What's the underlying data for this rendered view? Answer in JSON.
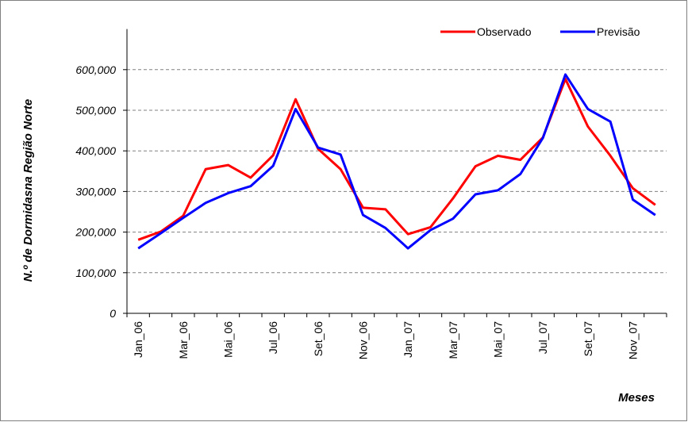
{
  "chart_data": {
    "type": "line",
    "y_label": "N.º de Dormidasna Região Norte",
    "x_label": "Meses",
    "categories": [
      "Jan_06",
      null,
      "Mar_06",
      null,
      "Mai_06",
      null,
      "Jul_06",
      null,
      "Set_06",
      null,
      "Nov_06",
      null,
      "Jan_07",
      null,
      "Mar_07",
      null,
      "Mai_07",
      null,
      "Jul_07",
      null,
      "Set_07",
      null,
      "Nov_07",
      null
    ],
    "series": [
      {
        "name": "Observado",
        "color": "#ff0000",
        "values": [
          181000,
          201000,
          240000,
          355000,
          365000,
          334000,
          389000,
          527000,
          405000,
          355000,
          260000,
          256000,
          195000,
          212000,
          283000,
          362000,
          388000,
          378000,
          433000,
          577000,
          460000,
          388000,
          308000,
          267000
        ]
      },
      {
        "name": "Previsão",
        "color": "#0000ff",
        "values": [
          160000,
          197000,
          235000,
          272000,
          296000,
          313000,
          363000,
          503000,
          408000,
          391000,
          242000,
          210000,
          160000,
          205000,
          233000,
          293000,
          303000,
          343000,
          432000,
          588000,
          503000,
          472000,
          280000,
          242000
        ]
      }
    ],
    "ylim": [
      0,
      700000
    ],
    "yticks": [
      0,
      {
        "value": 100000,
        "label": "100,000"
      },
      {
        "value": 200000,
        "label": "200,000"
      },
      {
        "value": 300000,
        "label": "300,000"
      },
      {
        "value": 400000,
        "label": "400,000"
      },
      {
        "value": 500000,
        "label": "500,000"
      },
      {
        "value": 600000,
        "label": "600,000"
      }
    ],
    "grid": true,
    "legend": "top-right"
  }
}
